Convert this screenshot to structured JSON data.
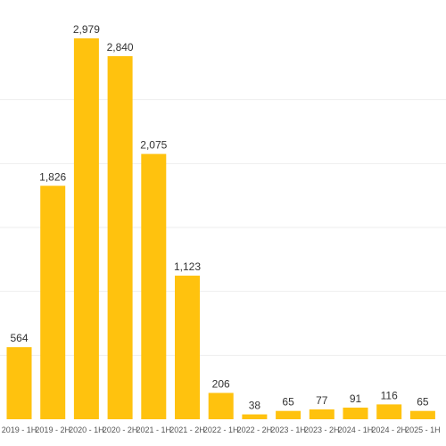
{
  "chart_data": {
    "type": "bar",
    "title": "",
    "xlabel": "",
    "ylabel": "",
    "categories": [
      "2019 - 1H",
      "2019 - 2H",
      "2020 - 1H",
      "2020 - 2H",
      "2021 - 1H",
      "2021 - 2H",
      "2022 - 1H",
      "2022 - 2H",
      "2023 - 1H",
      "2023 - 2H",
      "2024 - 1H",
      "2024 - 2H",
      "2025 - 1H"
    ],
    "values": [
      564,
      1826,
      2979,
      2840,
      2075,
      1123,
      206,
      38,
      65,
      77,
      91,
      116,
      65
    ],
    "value_labels": [
      "564",
      "1,826",
      "2,979",
      "2,840",
      "2,075",
      "1,123",
      "206",
      "38",
      "65",
      "77",
      "91",
      "116",
      "65"
    ],
    "ylim": [
      0,
      3000
    ],
    "grid": true,
    "legend": "none",
    "colors": {
      "bar": "#FFC20E",
      "grid": "#EEEEEE",
      "label": "#333333",
      "tick": "#555555"
    }
  }
}
